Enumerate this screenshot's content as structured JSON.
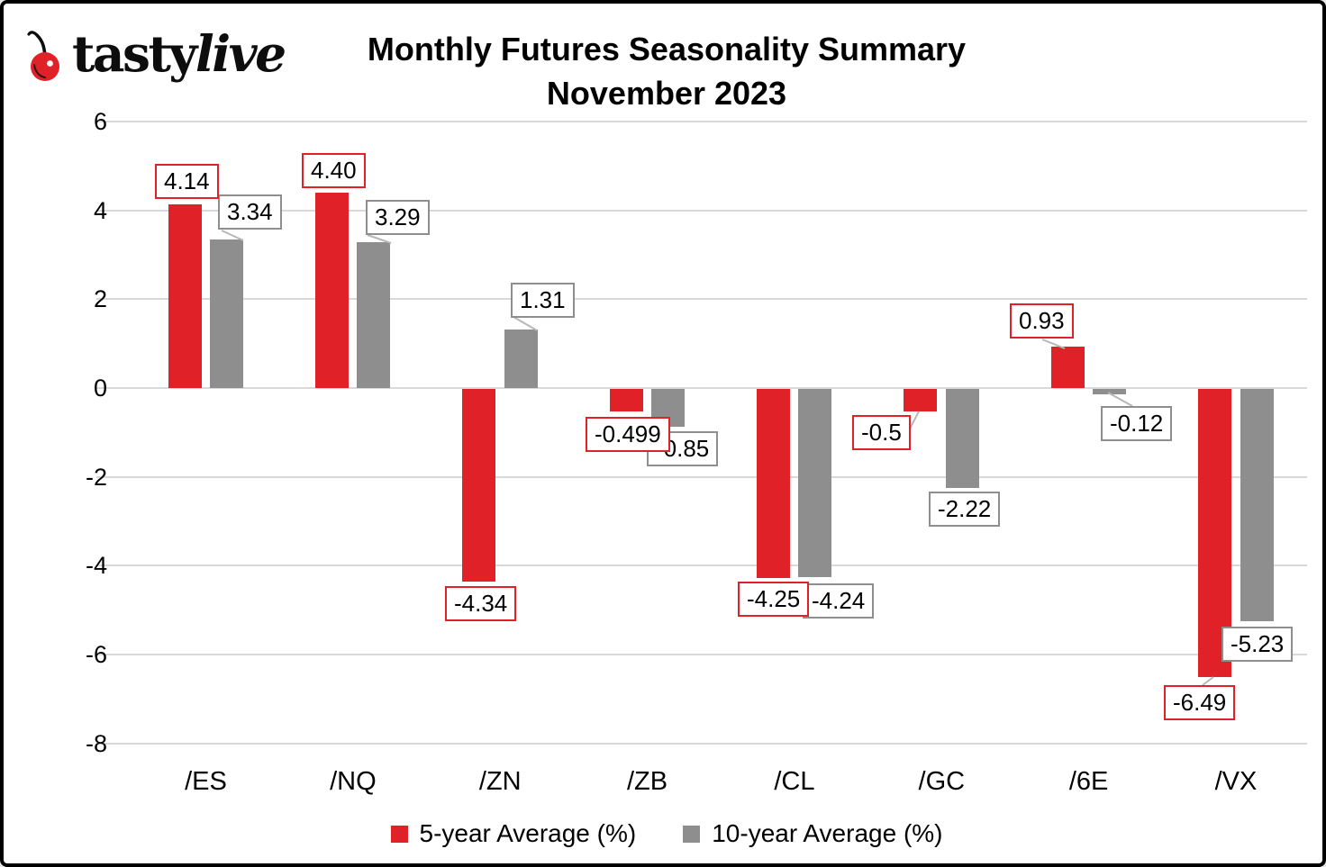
{
  "logo": {
    "icon": "cherry-icon",
    "brand_prefix": "tasty",
    "brand_suffix": "live"
  },
  "title": {
    "line1": "Monthly Futures Seasonality Summary",
    "line2": "November 2023"
  },
  "chart_data": {
    "type": "bar",
    "title": "Monthly Futures Seasonality Summary November 2023",
    "categories": [
      "/ES",
      "/NQ",
      "/ZN",
      "/ZB",
      "/CL",
      "/GC",
      "/6E",
      "/VX"
    ],
    "series": [
      {
        "name": "5-year Average (%)",
        "color": "#e02128",
        "values": [
          4.14,
          4.4,
          -4.34,
          -0.499,
          -4.25,
          -0.5,
          0.93,
          -6.49
        ],
        "labels": [
          "4.14",
          "4.40",
          "-4.34",
          "-0.499",
          "-4.25",
          "-0.5",
          "0.93",
          "-6.49"
        ]
      },
      {
        "name": "10-year Average (%)",
        "color": "#8e8e8e",
        "values": [
          3.34,
          3.29,
          1.31,
          -0.85,
          -4.24,
          -2.22,
          -0.12,
          -5.23
        ],
        "labels": [
          "3.34",
          "3.29",
          "1.31",
          "-0.85",
          "-4.24",
          "-2.22",
          "-0.12",
          "-5.23"
        ]
      }
    ],
    "yticks": [
      6,
      4,
      2,
      0,
      -2,
      -4,
      -6,
      -8
    ],
    "ylim": [
      -8,
      6
    ],
    "grid": true,
    "legend_position": "bottom",
    "xlabel": "",
    "ylabel": ""
  },
  "colors": {
    "accent_red": "#e02128",
    "bar_gray": "#8e8e8e",
    "gridline": "#d9d9d9",
    "leader_line": "#b7b7b7",
    "background": "#ffffff",
    "frame_border": "#000000"
  }
}
